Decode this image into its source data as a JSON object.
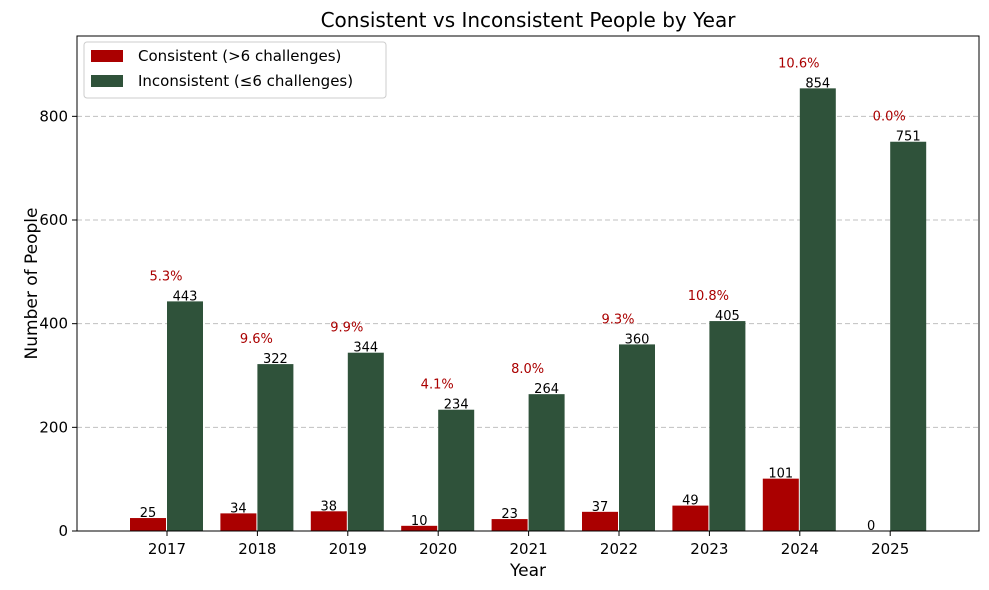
{
  "chart_data": {
    "type": "bar",
    "title": "Consistent vs Inconsistent People by Year",
    "xlabel": "Year",
    "ylabel": "Number of People",
    "categories": [
      "2017",
      "2018",
      "2019",
      "2020",
      "2021",
      "2022",
      "2023",
      "2024",
      "2025"
    ],
    "series": [
      {
        "name": "Consistent (>6 challenges)",
        "color": "#aa0000",
        "values": [
          25,
          34,
          38,
          10,
          23,
          37,
          49,
          101,
          0
        ]
      },
      {
        "name": "Inconsistent (≤6 challenges)",
        "color": "#2f523a",
        "values": [
          443,
          322,
          344,
          234,
          264,
          360,
          405,
          854,
          751
        ]
      }
    ],
    "percent_labels": [
      "5.3%",
      "9.6%",
      "9.9%",
      "4.1%",
      "8.0%",
      "9.3%",
      "10.8%",
      "10.6%",
      "0.0%"
    ],
    "percent_color": "#aa0000",
    "ylim": [
      0,
      955
    ],
    "yticks": [
      0,
      200,
      400,
      600,
      800
    ],
    "grid": "y, dashed",
    "legend_position": "top-left"
  }
}
